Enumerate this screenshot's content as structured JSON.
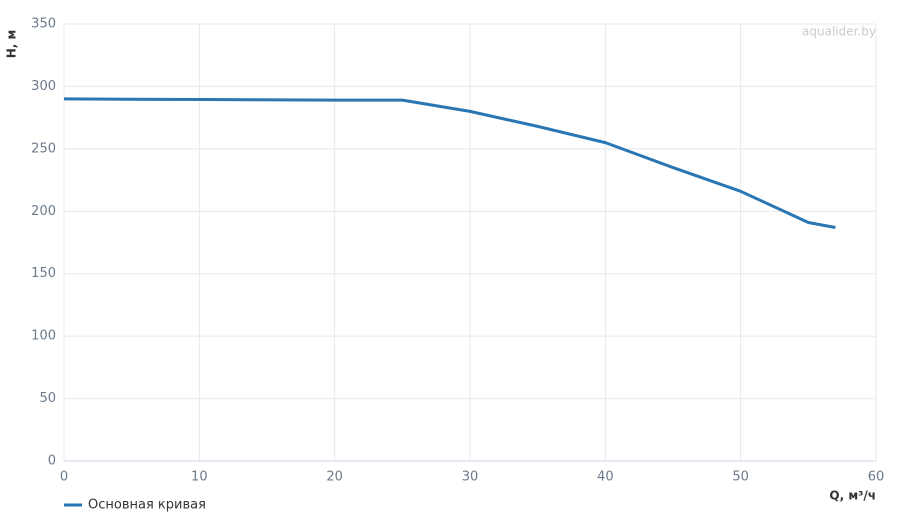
{
  "chart_data": {
    "type": "line",
    "xlabel": "Q, м³/ч",
    "ylabel": "H, м",
    "watermark": "aqualider.by",
    "x": [
      0,
      10,
      20,
      25,
      30,
      35,
      40,
      45,
      50,
      55,
      57
    ],
    "series": [
      {
        "name": "Основная кривая",
        "color": "#2a76b3",
        "values": [
          290,
          289.5,
          289,
          289,
          280,
          268,
          255,
          235,
          216,
          191,
          187
        ]
      }
    ],
    "xlim": [
      0,
      60
    ],
    "ylim": [
      0,
      350
    ],
    "xticks": [
      0,
      10,
      20,
      30,
      40,
      50,
      60
    ],
    "yticks": [
      0,
      50,
      100,
      150,
      200,
      250,
      300,
      350
    ],
    "grid": true
  }
}
